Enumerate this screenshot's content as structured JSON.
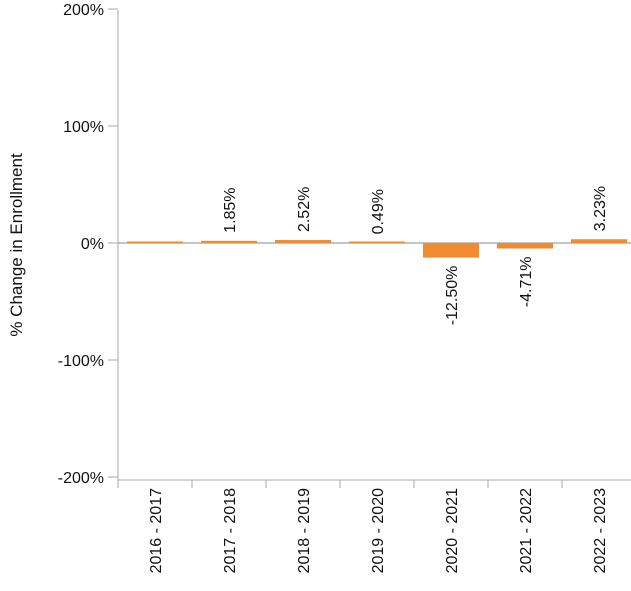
{
  "chart_data": {
    "type": "bar",
    "title": "",
    "xlabel": "",
    "ylabel": "% Change in Enrollment",
    "categories": [
      "2016 - 2017",
      "2017 - 2018",
      "2018 - 2019",
      "2019 - 2020",
      "2020 - 2021",
      "2021 - 2022",
      "2022 - 2023"
    ],
    "values": [
      0,
      1.85,
      2.52,
      0.49,
      -12.5,
      -4.71,
      3.23
    ],
    "data_labels": [
      "",
      "1.85%",
      "2.52%",
      "0.49%",
      "-12.50%",
      "-4.71%",
      "3.23%"
    ],
    "ylim": [
      -200,
      200
    ],
    "yticks": [
      200,
      100,
      0,
      -100,
      -200
    ],
    "ytick_labels": [
      "200%",
      "100%",
      "0%",
      "-100%",
      "-200%"
    ],
    "grid": false,
    "legend": "none",
    "colors": {
      "bar": "#F08B32",
      "axis": "#aaaaaa",
      "zero_line": "#888888"
    }
  }
}
